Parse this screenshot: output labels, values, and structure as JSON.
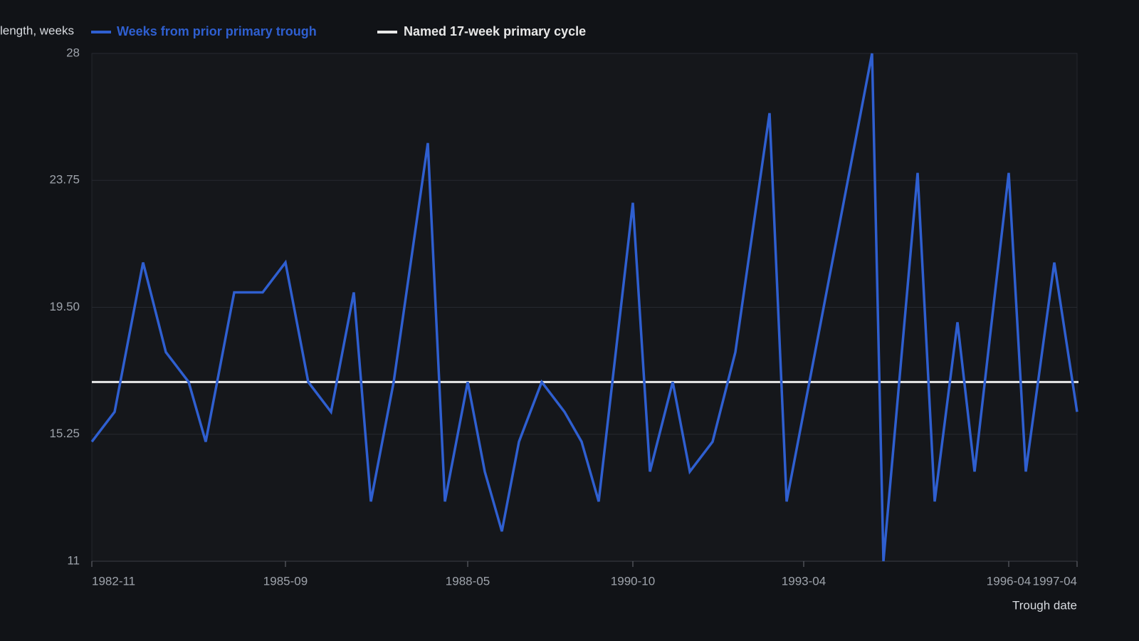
{
  "chart_data": {
    "type": "line",
    "y_label": "length, weeks",
    "x_label": "Trough date",
    "x": [
      "1982-11",
      "1983-03",
      "1983-08",
      "1983-12",
      "1984-04",
      "1984-07",
      "1984-12",
      "1985-05",
      "1985-09",
      "1986-01",
      "1986-05",
      "1986-09",
      "1986-12",
      "1987-04",
      "1987-10",
      "1988-01",
      "1988-05",
      "1988-08",
      "1988-11",
      "1989-02",
      "1989-06",
      "1989-10",
      "1990-01",
      "1990-04",
      "1990-10",
      "1991-01",
      "1991-05",
      "1991-08",
      "1991-12",
      "1992-04",
      "1992-10",
      "1993-01",
      "1994-04",
      "1994-06",
      "1994-12",
      "1995-03",
      "1995-07",
      "1995-10",
      "1996-04",
      "1996-07",
      "1996-12",
      "1997-04"
    ],
    "series": [
      {
        "name": "Weeks from prior primary trough",
        "color": "#2f5fd0",
        "values": [
          15,
          16,
          21,
          18,
          17,
          15,
          20,
          20,
          21,
          17,
          16,
          20,
          13,
          17,
          25,
          13,
          17,
          14,
          12,
          15,
          17,
          16,
          15,
          13,
          23,
          14,
          17,
          14,
          15,
          18,
          26,
          13,
          28,
          11,
          24,
          13,
          19,
          14,
          24,
          14,
          21,
          16
        ]
      }
    ],
    "reference_line": {
      "name": "Named 17-week primary cycle",
      "color": "#e8e8e8",
      "value": 17
    },
    "xlim": [
      "1982-11",
      "1997-04"
    ],
    "xticks": [
      "1982-11",
      "1985-09",
      "1988-05",
      "1990-10",
      "1993-04",
      "1996-04",
      "1997-04"
    ],
    "ylim": [
      11,
      28
    ],
    "yticks": [
      11,
      15.25,
      {
        "value": 19.5,
        "label": "19.50"
      },
      23.75,
      28
    ],
    "grid": true
  }
}
